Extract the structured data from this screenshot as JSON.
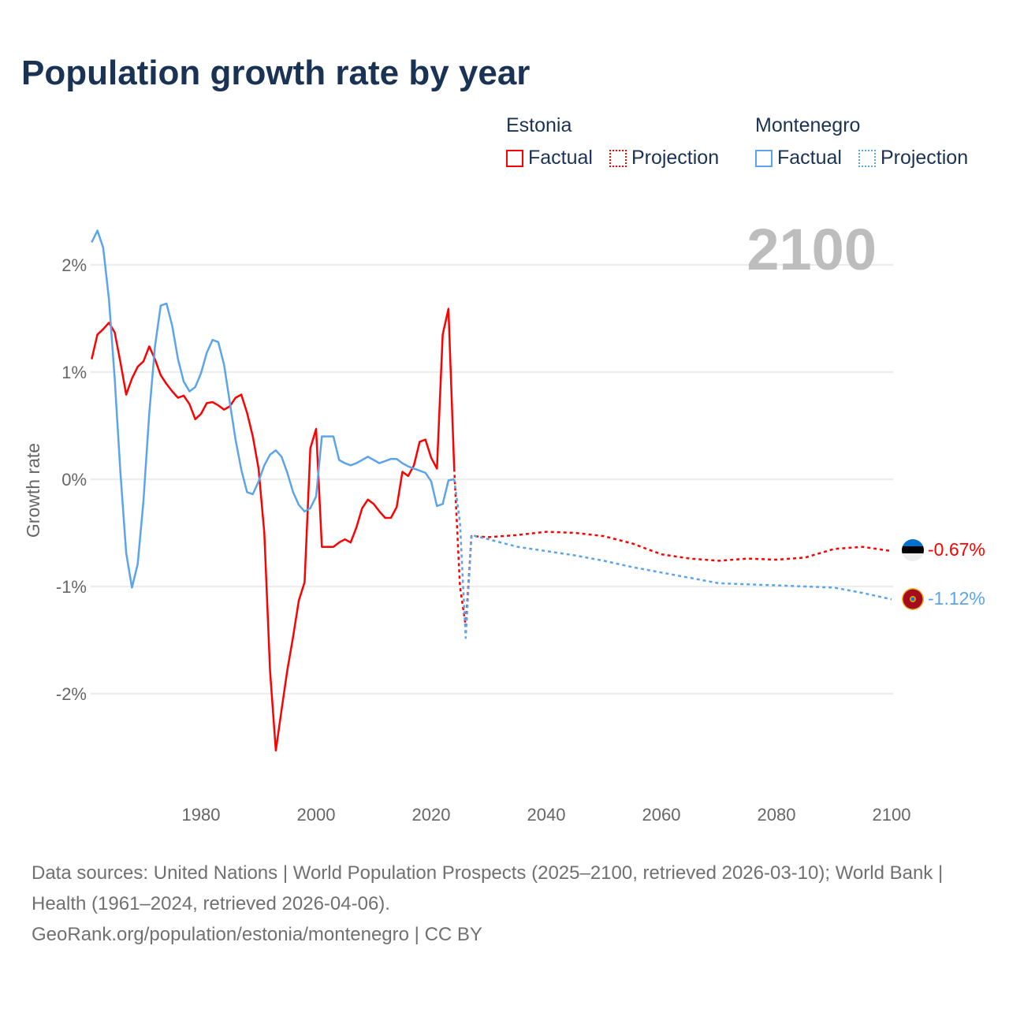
{
  "title": "Population growth rate by year",
  "legend": {
    "groups": [
      {
        "name": "Estonia",
        "color": "#ff0000",
        "factual": "Factual",
        "projection": "Projection"
      },
      {
        "name": "Montenegro",
        "color": "#5ba4ec",
        "factual": "Factual",
        "projection": "Projection"
      }
    ]
  },
  "year_label": "2100",
  "end_labels": {
    "estonia": "-0.67%",
    "montenegro": "-1.12%"
  },
  "footer": {
    "sources": "Data sources: United Nations | World Population Prospects (2025–2100, retrieved 2026-03-10); World Bank | Health (1961–2024, retrieved 2026-04-06).",
    "credit": "GeoRank.org/population/estonia/montenegro | CC BY"
  },
  "chart_data": {
    "type": "line",
    "title": "Population growth rate by year",
    "xlabel": "",
    "ylabel": "Growth rate",
    "xlim": [
      1961,
      2100
    ],
    "ylim": [
      -2.9,
      2.3
    ],
    "grid": true,
    "x_ticks": [
      1980,
      2000,
      2020,
      2040,
      2060,
      2080,
      2100
    ],
    "x_tick_labels": [
      "1980",
      "2000",
      "2020",
      "2040",
      "2060",
      "2080",
      "2100"
    ],
    "y_ticks": [
      2,
      1,
      0,
      -1,
      -2
    ],
    "y_tick_labels": [
      "2%",
      "1%",
      "0%",
      "-1%",
      "-2%"
    ],
    "series": [
      {
        "name": "Estonia",
        "kind": "Factual",
        "color": "#ff0000",
        "x_start": 1961,
        "values": [
          1.12,
          1.35,
          1.4,
          1.46,
          1.37,
          1.09,
          0.79,
          0.94,
          1.05,
          1.1,
          1.24,
          1.12,
          0.97,
          0.89,
          0.82,
          0.76,
          0.78,
          0.7,
          0.56,
          0.61,
          0.71,
          0.72,
          0.69,
          0.65,
          0.68,
          0.76,
          0.79,
          0.62,
          0.4,
          0.1,
          -0.5,
          -1.79,
          -2.53,
          -2.15,
          -1.78,
          -1.47,
          -1.13,
          -0.96,
          0.29,
          0.47,
          -0.63,
          -0.63,
          -0.63,
          -0.59,
          -0.56,
          -0.59,
          -0.45,
          -0.27,
          -0.19,
          -0.23,
          -0.3,
          -0.36,
          -0.36,
          -0.26,
          0.07,
          0.03,
          0.13,
          0.35,
          0.37,
          0.2,
          0.1,
          1.35,
          1.59,
          0.1
        ]
      },
      {
        "name": "Estonia",
        "kind": "Projection",
        "color": "#ff0000",
        "x": [
          2024,
          2025,
          2026,
          2027,
          2030,
          2035,
          2040,
          2045,
          2050,
          2055,
          2060,
          2065,
          2070,
          2075,
          2080,
          2085,
          2090,
          2095,
          2100
        ],
        "values": [
          0.1,
          -1.0,
          -1.37,
          -0.53,
          -0.54,
          -0.52,
          -0.49,
          -0.5,
          -0.53,
          -0.6,
          -0.7,
          -0.74,
          -0.76,
          -0.74,
          -0.75,
          -0.73,
          -0.65,
          -0.63,
          -0.67
        ]
      },
      {
        "name": "Montenegro",
        "kind": "Factual",
        "color": "#5ba4ec",
        "x_start": 1961,
        "values": [
          2.21,
          2.32,
          2.16,
          1.68,
          0.94,
          0.06,
          -0.69,
          -1.01,
          -0.79,
          -0.2,
          0.61,
          1.24,
          1.62,
          1.64,
          1.43,
          1.12,
          0.91,
          0.82,
          0.86,
          0.99,
          1.18,
          1.3,
          1.28,
          1.07,
          0.72,
          0.37,
          0.09,
          -0.12,
          -0.14,
          -0.02,
          0.13,
          0.23,
          0.27,
          0.21,
          0.06,
          -0.12,
          -0.24,
          -0.3,
          -0.27,
          -0.16,
          0.4,
          0.4,
          0.4,
          0.18,
          0.15,
          0.13,
          0.15,
          0.18,
          0.21,
          0.18,
          0.15,
          0.17,
          0.19,
          0.19,
          0.15,
          0.12,
          0.1,
          0.08,
          0.06,
          -0.02,
          -0.25,
          -0.23,
          -0.01,
          0.0
        ]
      },
      {
        "name": "Montenegro",
        "kind": "Projection",
        "color": "#5ba4ec",
        "x": [
          2024,
          2025,
          2026,
          2027,
          2030,
          2035,
          2040,
          2045,
          2050,
          2055,
          2060,
          2065,
          2070,
          2075,
          2080,
          2085,
          2090,
          2095,
          2100
        ],
        "values": [
          0.0,
          -0.4,
          -1.48,
          -0.52,
          -0.56,
          -0.63,
          -0.67,
          -0.71,
          -0.76,
          -0.82,
          -0.87,
          -0.92,
          -0.97,
          -0.98,
          -0.99,
          -1.0,
          -1.01,
          -1.06,
          -1.12
        ]
      }
    ]
  }
}
